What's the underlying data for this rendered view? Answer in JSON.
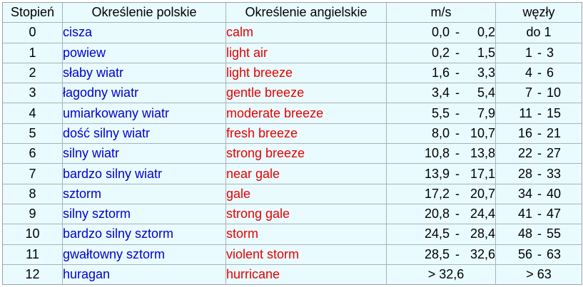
{
  "headers": {
    "stopien": "Stopień",
    "polskie": "Określenie polskie",
    "angielskie": "Określenie angielskie",
    "ms": "m/s",
    "wezly": "węzły"
  },
  "rows": [
    {
      "stopien": "0",
      "pl": "cisza",
      "en": "calm",
      "ms_lo": "0,0",
      "ms_sep": "-",
      "ms_hi": "0,2",
      "ms_text": "",
      "kn_lo": "",
      "kn_sep": "",
      "kn_hi": "",
      "kn_text": "do 1"
    },
    {
      "stopien": "1",
      "pl": "powiew",
      "en": "light air",
      "ms_lo": "0,2",
      "ms_sep": "-",
      "ms_hi": "1,5",
      "ms_text": "",
      "kn_lo": "1",
      "kn_sep": "-",
      "kn_hi": "3",
      "kn_text": ""
    },
    {
      "stopien": "2",
      "pl": "słaby wiatr",
      "en": "light breeze",
      "ms_lo": "1,6",
      "ms_sep": "-",
      "ms_hi": "3,3",
      "ms_text": "",
      "kn_lo": "4",
      "kn_sep": "-",
      "kn_hi": "6",
      "kn_text": ""
    },
    {
      "stopien": "3",
      "pl": "łagodny wiatr",
      "en": "gentle breeze",
      "ms_lo": "3,4",
      "ms_sep": "-",
      "ms_hi": "5,4",
      "ms_text": "",
      "kn_lo": "7",
      "kn_sep": "-",
      "kn_hi": "10",
      "kn_text": ""
    },
    {
      "stopien": "4",
      "pl": "umiarkowany wiatr",
      "en": "moderate breeze",
      "ms_lo": "5,5",
      "ms_sep": "-",
      "ms_hi": "7,9",
      "ms_text": "",
      "kn_lo": "11",
      "kn_sep": "-",
      "kn_hi": "15",
      "kn_text": ""
    },
    {
      "stopien": "5",
      "pl": "dość silny wiatr",
      "en": "fresh breeze",
      "ms_lo": "8,0",
      "ms_sep": "-",
      "ms_hi": "10,7",
      "ms_text": "",
      "kn_lo": "16",
      "kn_sep": "-",
      "kn_hi": "21",
      "kn_text": ""
    },
    {
      "stopien": "6",
      "pl": "silny wiatr",
      "en": "strong breeze",
      "ms_lo": "10,8",
      "ms_sep": "-",
      "ms_hi": "13,8",
      "ms_text": "",
      "kn_lo": "22",
      "kn_sep": "-",
      "kn_hi": "27",
      "kn_text": ""
    },
    {
      "stopien": "7",
      "pl": "bardzo silny wiatr",
      "en": "near gale",
      "ms_lo": "13,9",
      "ms_sep": "-",
      "ms_hi": "17,1",
      "ms_text": "",
      "kn_lo": "28",
      "kn_sep": "-",
      "kn_hi": "33",
      "kn_text": ""
    },
    {
      "stopien": "8",
      "pl": "sztorm",
      "en": "gale",
      "ms_lo": "17,2",
      "ms_sep": "-",
      "ms_hi": "20,7",
      "ms_text": "",
      "kn_lo": "34",
      "kn_sep": "-",
      "kn_hi": "40",
      "kn_text": ""
    },
    {
      "stopien": "9",
      "pl": "silny sztorm",
      "en": "strong gale",
      "ms_lo": "20,8",
      "ms_sep": "-",
      "ms_hi": "24,4",
      "ms_text": "",
      "kn_lo": "41",
      "kn_sep": "-",
      "kn_hi": "47",
      "kn_text": ""
    },
    {
      "stopien": "10",
      "pl": "bardzo silny sztorm",
      "en": "storm",
      "ms_lo": "24,5",
      "ms_sep": "-",
      "ms_hi": "28,4",
      "ms_text": "",
      "kn_lo": "48",
      "kn_sep": "-",
      "kn_hi": "55",
      "kn_text": ""
    },
    {
      "stopien": "11",
      "pl": "gwałtowny sztorm",
      "en": "violent storm",
      "ms_lo": "28,5",
      "ms_sep": "-",
      "ms_hi": "32,6",
      "ms_text": "",
      "kn_lo": "56",
      "kn_sep": "-",
      "kn_hi": "63",
      "kn_text": ""
    },
    {
      "stopien": "12",
      "pl": "huragan",
      "en": "hurricane",
      "ms_lo": "",
      "ms_sep": "",
      "ms_hi": "",
      "ms_text": "> 32,6",
      "kn_lo": "",
      "kn_sep": "",
      "kn_hi": "",
      "kn_text": "> 63"
    }
  ],
  "colors": {
    "background": "#e9fbfe",
    "polish_text": "#0000d0",
    "english_text": "#e60000",
    "grid": "#aab2b7"
  }
}
